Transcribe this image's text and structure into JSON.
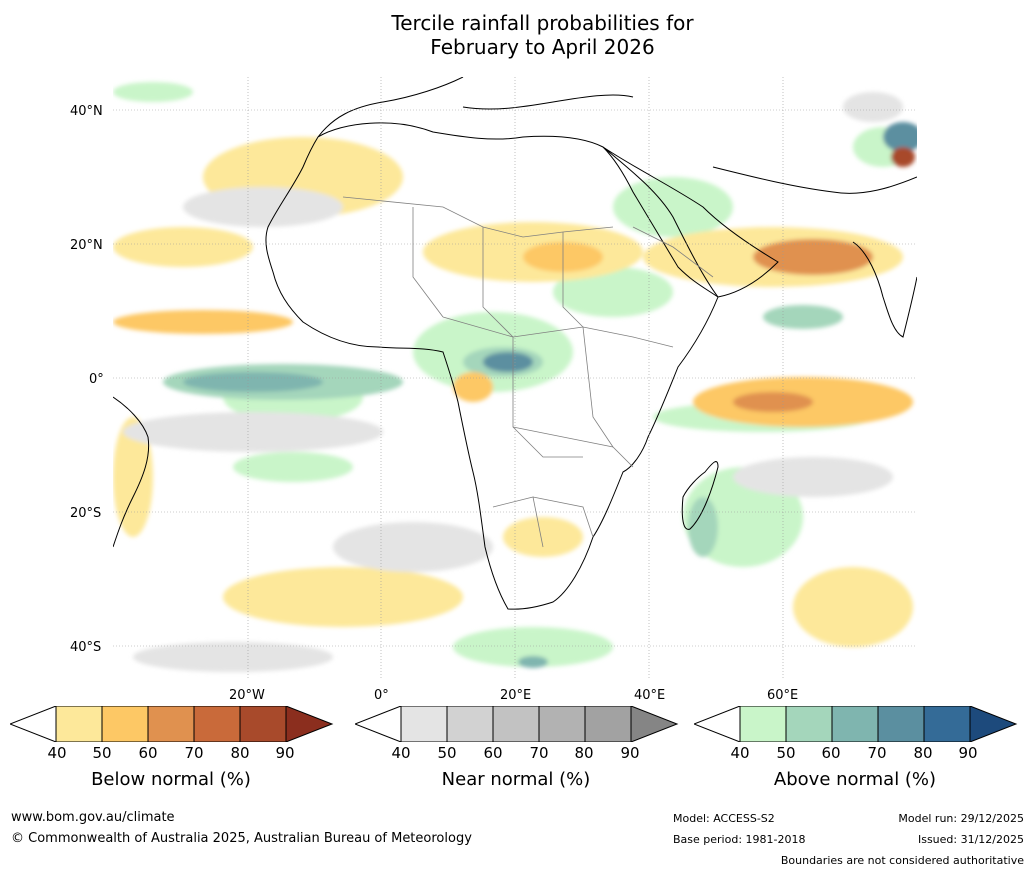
{
  "title": {
    "line1": "Tercile rainfall probabilities for",
    "line2": "February to April 2026"
  },
  "map": {
    "lat_labels": [
      "40°N",
      "20°N",
      "0°",
      "20°S",
      "40°S"
    ],
    "lon_labels": [
      "20°W",
      "0°",
      "20°E",
      "40°E",
      "60°E"
    ]
  },
  "colorbars": [
    {
      "title": "Below normal (%)",
      "ticks": [
        "40",
        "50",
        "60",
        "70",
        "80",
        "90"
      ],
      "colors": [
        "#ffffff",
        "#fde89a",
        "#fdc865",
        "#e0914f",
        "#c96a3a",
        "#a84a2b",
        "#8b2e1e"
      ]
    },
    {
      "title": "Near normal (%)",
      "ticks": [
        "40",
        "50",
        "60",
        "70",
        "80",
        "90"
      ],
      "colors": [
        "#ffffff",
        "#e4e4e4",
        "#d2d2d2",
        "#c2c2c2",
        "#b2b2b2",
        "#a2a2a2",
        "#858585"
      ]
    },
    {
      "title": "Above normal (%)",
      "ticks": [
        "40",
        "50",
        "60",
        "70",
        "80",
        "90"
      ],
      "colors": [
        "#ffffff",
        "#c9f5c9",
        "#a4d6bb",
        "#7fb5af",
        "#5b8fa0",
        "#346b97",
        "#1d4a7c"
      ]
    }
  ],
  "footer": {
    "url": "www.bom.gov.au/climate",
    "copyright": "© Commonwealth of Australia 2025, Australian Bureau of Meteorology",
    "model": "Model: ACCESS-S2",
    "base_period": "Base period: 1981-2018",
    "model_run": "Model run: 29/12/2025",
    "issued": "Issued: 31/12/2025",
    "disclaimer": "Boundaries are not considered authoritative"
  }
}
